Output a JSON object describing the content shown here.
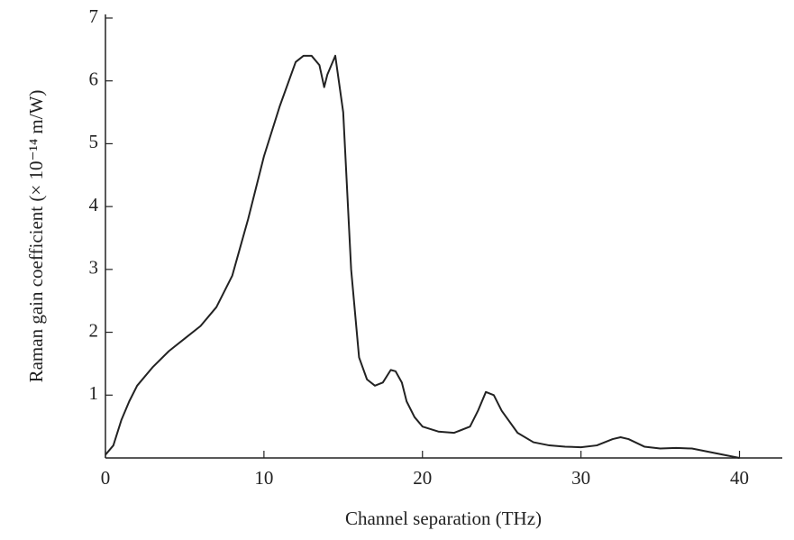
{
  "chart_data": {
    "type": "line",
    "xlabel": "Channel separation (THz)",
    "ylabel": "Raman gain coefficient (× 10⁻¹⁴ m/W)",
    "x": [
      0,
      0.5,
      1,
      1.5,
      2,
      3,
      4,
      5,
      6,
      7,
      8,
      9,
      10,
      11,
      12,
      12.5,
      13,
      13.5,
      13.8,
      14,
      14.5,
      15,
      15.5,
      16,
      16.5,
      17,
      17.5,
      18,
      18.3,
      18.7,
      19,
      19.5,
      20,
      21,
      22,
      23,
      23.5,
      24,
      24.5,
      25,
      26,
      27,
      28,
      29,
      30,
      31,
      32,
      32.5,
      33,
      34,
      35,
      36,
      37,
      38,
      39,
      40
    ],
    "series": [
      {
        "color": "#222222",
        "values": [
          0.05,
          0.2,
          0.6,
          0.9,
          1.15,
          1.45,
          1.7,
          1.9,
          2.1,
          2.4,
          2.9,
          3.8,
          4.8,
          5.6,
          6.3,
          6.4,
          6.4,
          6.25,
          5.9,
          6.1,
          6.4,
          5.5,
          3.0,
          1.6,
          1.25,
          1.15,
          1.2,
          1.4,
          1.38,
          1.2,
          0.9,
          0.65,
          0.5,
          0.42,
          0.4,
          0.5,
          0.75,
          1.05,
          1.0,
          0.75,
          0.4,
          0.25,
          0.2,
          0.18,
          0.17,
          0.2,
          0.3,
          0.33,
          0.3,
          0.18,
          0.15,
          0.16,
          0.15,
          0.1,
          0.05,
          0.0
        ]
      }
    ],
    "xlim": [
      0,
      42.7
    ],
    "ylim": [
      0,
      7
    ],
    "xticks": [
      0,
      10,
      20,
      30,
      40
    ],
    "yticks": [
      1,
      2,
      3,
      4,
      5,
      6,
      7
    ]
  }
}
